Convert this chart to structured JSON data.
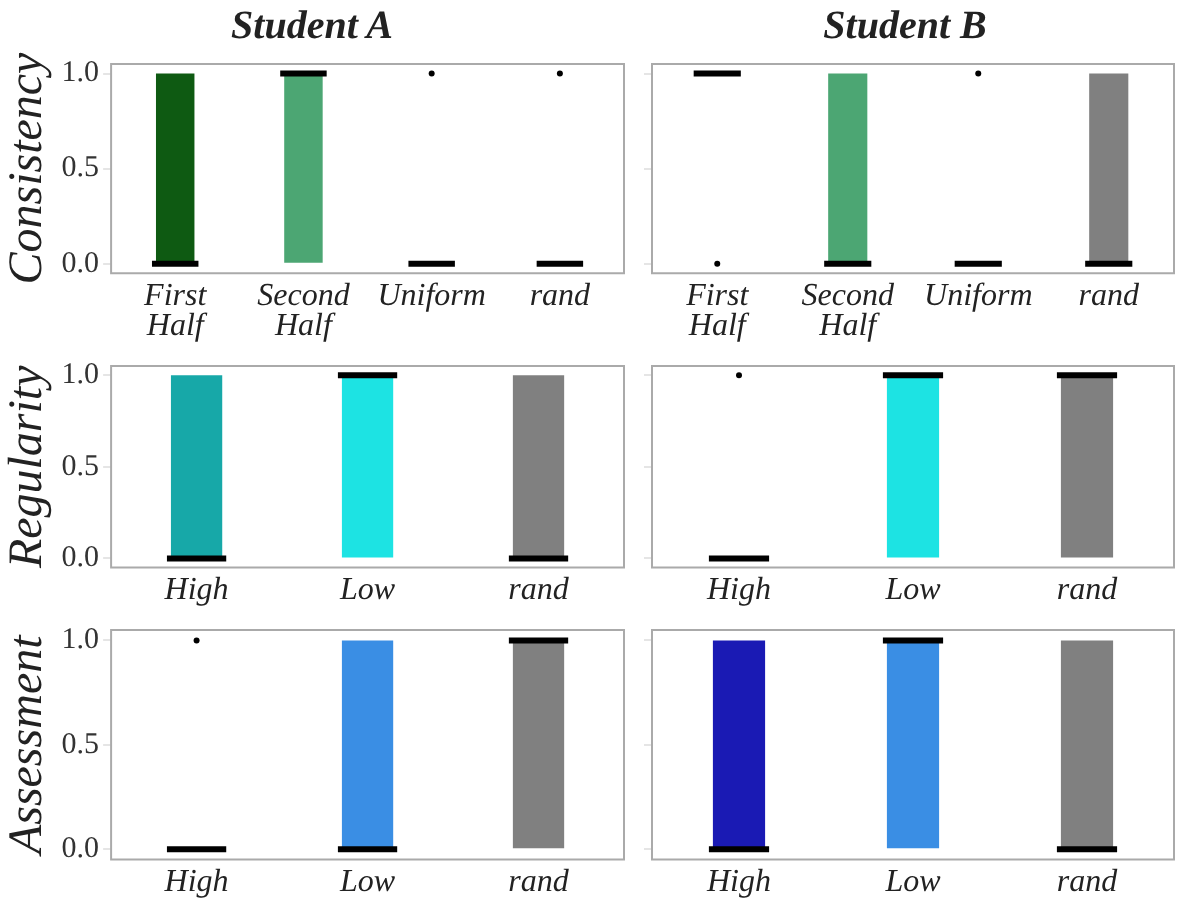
{
  "chart_data": [
    {
      "type": "box",
      "title": "Student A",
      "ylabel": "Consistency",
      "categories": [
        "First Half",
        "Second Half",
        "Uniform",
        "rand"
      ],
      "colors": [
        "#0e5a12",
        "#4ca673",
        null,
        null
      ],
      "ylim": [
        -0.05,
        1.05
      ],
      "yticks": [
        {
          "value": 0,
          "label": "0.0"
        },
        {
          "value": 0.5,
          "label": "0.5"
        },
        {
          "value": 1,
          "label": "1.0"
        }
      ],
      "grid": false,
      "boxes": [
        {
          "low": 0,
          "q1": 0,
          "median": 0,
          "q3": 1,
          "high": 1
        },
        {
          "low": 0,
          "q1": 0,
          "median": 1,
          "q3": 1,
          "high": 1
        },
        {
          "low": 0,
          "q1": 0,
          "median": 0,
          "q3": 0,
          "high": 0,
          "outliers": [
            1
          ]
        },
        {
          "low": 0,
          "q1": 0,
          "median": 0,
          "q3": 0,
          "high": 0,
          "outliers": [
            1
          ]
        }
      ]
    },
    {
      "type": "box",
      "title": "Student B",
      "categories": [
        "First Half",
        "Second Half",
        "Uniform",
        "rand"
      ],
      "colors": [
        null,
        "#4ca673",
        null,
        "#808080"
      ],
      "ylim": [
        -0.05,
        1.05
      ],
      "yticks": [
        {
          "value": 0,
          "label": null
        },
        {
          "value": 0.5,
          "label": null
        },
        {
          "value": 1,
          "label": null
        }
      ],
      "tick_labels": "x",
      "grid": false,
      "boxes": [
        {
          "low": 1,
          "q1": 1,
          "median": 1,
          "q3": 1,
          "high": 1,
          "outliers": [
            0
          ]
        },
        {
          "low": 0,
          "q1": 0,
          "median": 0,
          "q3": 1,
          "high": 1
        },
        {
          "low": 0,
          "q1": 0,
          "median": 0,
          "q3": 0,
          "high": 0,
          "outliers": [
            1
          ]
        },
        {
          "low": 0,
          "q1": 0,
          "median": 0,
          "q3": 1,
          "high": 1
        }
      ]
    },
    {
      "type": "box",
      "ylabel": "Regularity",
      "categories": [
        "High",
        "Low",
        "rand"
      ],
      "colors": [
        "#17a8a8",
        "#1de3e3",
        "#808080"
      ],
      "ylim": [
        -0.05,
        1.05
      ],
      "yticks": [
        {
          "value": 0,
          "label": "0.0"
        },
        {
          "value": 0.5,
          "label": "0.5"
        },
        {
          "value": 1,
          "label": "1.0"
        }
      ],
      "grid": false,
      "boxes": [
        {
          "low": 0,
          "q1": 0,
          "median": 0,
          "q3": 1,
          "high": 1
        },
        {
          "low": 0,
          "q1": 0,
          "median": 1,
          "q3": 1,
          "high": 1
        },
        {
          "low": 0,
          "q1": 0,
          "median": 0,
          "q3": 1,
          "high": 1
        }
      ]
    },
    {
      "type": "box",
      "categories": [
        "High",
        "Low",
        "rand"
      ],
      "colors": [
        null,
        "#1de3e3",
        "#808080"
      ],
      "ylim": [
        -0.05,
        1.05
      ],
      "yticks": [
        {
          "value": 0,
          "label": null
        },
        {
          "value": 0.5,
          "label": null
        },
        {
          "value": 1,
          "label": null
        }
      ],
      "tick_labels": "x",
      "grid": false,
      "boxes": [
        {
          "low": 0,
          "q1": 0,
          "median": 0,
          "q3": 0,
          "high": 0,
          "outliers": [
            1
          ]
        },
        {
          "low": 0,
          "q1": 0,
          "median": 1,
          "q3": 1,
          "high": 1
        },
        {
          "low": 0,
          "q1": 0,
          "median": 1,
          "q3": 1,
          "high": 1
        }
      ]
    },
    {
      "type": "box",
      "ylabel": "Assessment",
      "categories": [
        "High",
        "Low",
        "rand"
      ],
      "colors": [
        null,
        "#3a8ee4",
        "#808080"
      ],
      "ylim": [
        -0.05,
        1.05
      ],
      "yticks": [
        {
          "value": 0,
          "label": "0.0"
        },
        {
          "value": 0.5,
          "label": "0.5"
        },
        {
          "value": 1,
          "label": "1.0"
        }
      ],
      "grid": false,
      "boxes": [
        {
          "low": 0,
          "q1": 0,
          "median": 0,
          "q3": 0,
          "high": 0,
          "outliers": [
            1
          ]
        },
        {
          "low": 0,
          "q1": 0,
          "median": 0,
          "q3": 1,
          "high": 1
        },
        {
          "low": 0,
          "q1": 0,
          "median": 1,
          "q3": 1,
          "high": 1
        }
      ]
    },
    {
      "type": "box",
      "categories": [
        "High",
        "Low",
        "rand"
      ],
      "colors": [
        "#1a1ab4",
        "#3a8ee4",
        "#808080"
      ],
      "ylim": [
        -0.05,
        1.05
      ],
      "yticks": [
        {
          "value": 0,
          "label": null
        },
        {
          "value": 0.5,
          "label": null
        },
        {
          "value": 1,
          "label": null
        }
      ],
      "tick_labels": "x",
      "grid": false,
      "boxes": [
        {
          "low": 0,
          "q1": 0,
          "median": 0,
          "q3": 1,
          "high": 1
        },
        {
          "low": 0,
          "q1": 0,
          "median": 1,
          "q3": 1,
          "high": 1
        },
        {
          "low": 0,
          "q1": 0,
          "median": 0,
          "q3": 1,
          "high": 1
        }
      ]
    }
  ]
}
